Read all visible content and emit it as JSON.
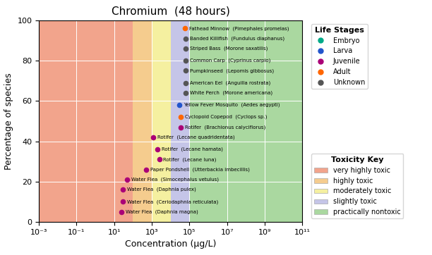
{
  "chart_data": {
    "type": "scatter",
    "title": "Chromium  (48 hours)",
    "x_label": "Concentration (μg/L)",
    "y_label": "Percentage of species",
    "log": "x",
    "xlim": [
      0.001,
      100000000000.0
    ],
    "ylim": [
      0,
      100
    ],
    "xticks": [
      {
        "value": 0.001,
        "label": "10⁻³"
      },
      {
        "value": 0.1,
        "label": "10⁻¹"
      },
      {
        "value": 10,
        "label": "10¹"
      },
      {
        "value": 1000,
        "label": "10³"
      },
      {
        "value": 100000,
        "label": "10⁵"
      },
      {
        "value": 10000000,
        "label": "10⁷"
      },
      {
        "value": 1000000000,
        "label": "10⁹"
      },
      {
        "value": 100000000000,
        "label": "10¹¹"
      }
    ],
    "yticks": [
      0,
      20,
      40,
      60,
      80,
      100
    ],
    "grid": true,
    "legend": "upper left",
    "legend_title": "Life Stages",
    "series": [
      {
        "name": "Embryo",
        "color": "#00aa88",
        "x": [],
        "values": [],
        "point_labels": []
      },
      {
        "name": "Larva",
        "color": "#2255cc",
        "x": [
          30000
        ],
        "values": [
          58
        ],
        "point_labels": [
          "Yellow Fever Mosquito  (Aedes aegypti)"
        ]
      },
      {
        "name": "Juvenile",
        "color": "#aa0077",
        "x": [
          35000,
          1200,
          2000,
          2500,
          500,
          50,
          30,
          30,
          25
        ],
        "values": [
          47,
          42,
          36,
          31,
          26,
          21,
          16,
          10,
          5
        ],
        "point_labels": [
          "Rotifer  (Brachionus calyciflorus)",
          "Rotifer  (Lecane quadridentata)",
          "Rotifer  (Lecane hamata)",
          "Rotifer  (Lecane luna)",
          "Paper Pondshell  (Utterbackia imbecillis)",
          "Water Flea  (Simocephalus vetulus)",
          "Water Flea  (Daphnia pulex)",
          "Water Flea  (Ceriodaphnia reticulata)",
          "Water Flea  (Daphnia magna)"
        ]
      },
      {
        "name": "Adult",
        "color": "#ff6600",
        "x": [
          60000,
          35000
        ],
        "values": [
          96,
          52
        ],
        "point_labels": [
          "Fathead Minnow  (Pimephales promelas)",
          "Cyclopoid Copepod  (Cyclops sp.)"
        ]
      },
      {
        "name": "Unknown",
        "color": "#555555",
        "x": [
          65000,
          65000,
          65000,
          65000,
          65000,
          65000
        ],
        "values": [
          91,
          86,
          80,
          75,
          69,
          64
        ],
        "point_labels": [
          "Banded Killifish  (Fundulus diaphanus)",
          "Striped Bass  (Morone saxatilis)",
          "Common Carp  (Cyprinus carpio)",
          "Pumpkinseed  (Lepomis gibbosus)",
          "American Eel  (Anguilla rostrata)",
          "White Perch  (Morone americana)"
        ]
      }
    ],
    "regions_title": "Toxicity Key",
    "regions": [
      {
        "name": "very highly toxic",
        "color": "#f2a48c",
        "x_start": 0.001,
        "x_end": 100
      },
      {
        "name": "highly toxic",
        "color": "#f5cc8e",
        "x_start": 100,
        "x_end": 1000
      },
      {
        "name": "moderately toxic",
        "color": "#f5f0a0",
        "x_start": 1000,
        "x_end": 10000
      },
      {
        "name": "slightly toxic",
        "color": "#c5c5e8",
        "x_start": 10000,
        "x_end": 100000
      },
      {
        "name": "practically nontoxic",
        "color": "#aad8a0",
        "x_start": 100000,
        "x_end": 100000000000.0
      }
    ]
  }
}
